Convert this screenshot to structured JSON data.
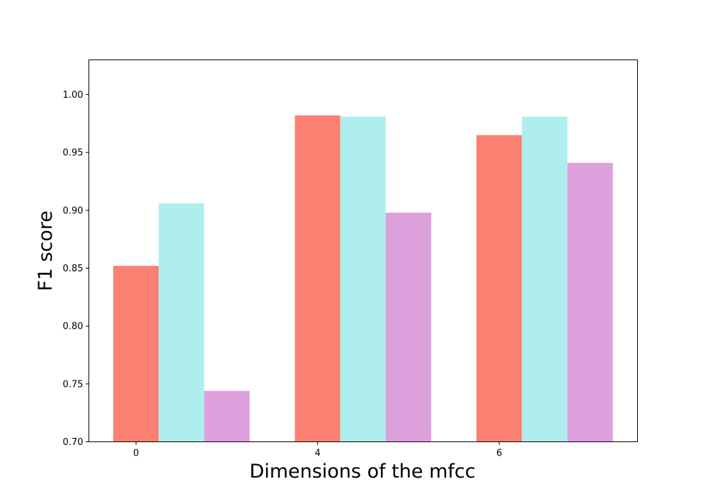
{
  "chart_data": {
    "type": "bar",
    "xlabel": "Dimensions of the mfcc",
    "ylabel": "F1 score",
    "categories": [
      "0",
      "4",
      "6"
    ],
    "series": [
      {
        "color": "#fa8072",
        "values": [
          0.852,
          0.982,
          0.965
        ]
      },
      {
        "color": "#afeeee",
        "values": [
          0.906,
          0.981,
          0.981
        ]
      },
      {
        "color": "#dda0dd",
        "values": [
          0.744,
          0.898,
          0.941
        ]
      }
    ],
    "ylim": [
      0.7,
      1.03
    ],
    "yticks": [
      0.7,
      0.75,
      0.8,
      0.85,
      0.9,
      0.95,
      1.0
    ],
    "ytick_labels": [
      "0.70",
      "0.75",
      "0.80",
      "0.85",
      "0.90",
      "0.95",
      "1.00"
    ],
    "grid": false,
    "legend": "none"
  }
}
